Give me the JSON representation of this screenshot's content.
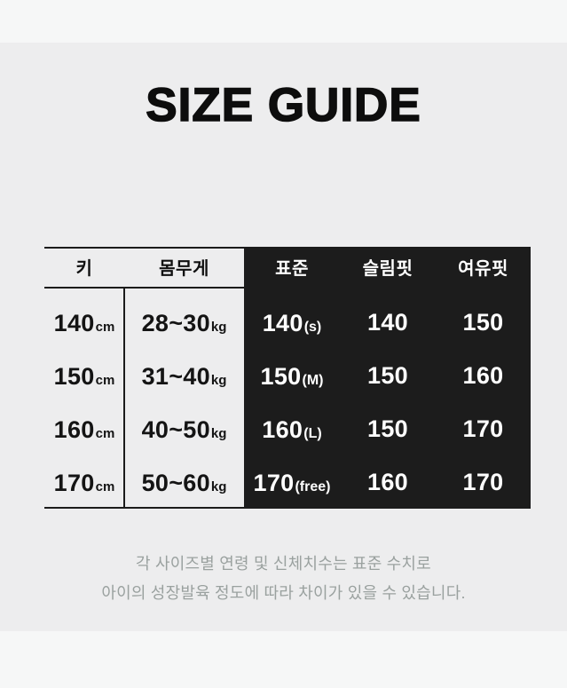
{
  "title": "SIZE GUIDE",
  "table": {
    "columns": {
      "height": "키",
      "weight": "몸무게",
      "standard": "표준",
      "slim": "슬림핏",
      "loose": "여유핏"
    },
    "rows": [
      {
        "height_value": "140",
        "height_unit": "cm",
        "weight_value": "28~30",
        "weight_unit": "kg",
        "standard_value": "140",
        "standard_label": "(s)",
        "slim": "140",
        "loose": "150"
      },
      {
        "height_value": "150",
        "height_unit": "cm",
        "weight_value": "31~40",
        "weight_unit": "kg",
        "standard_value": "150",
        "standard_label": "(M)",
        "slim": "150",
        "loose": "160"
      },
      {
        "height_value": "160",
        "height_unit": "cm",
        "weight_value": "40~50",
        "weight_unit": "kg",
        "standard_value": "160",
        "standard_label": "(L)",
        "slim": "150",
        "loose": "170"
      },
      {
        "height_value": "170",
        "height_unit": "cm",
        "weight_value": "50~60",
        "weight_unit": "kg",
        "standard_value": "170",
        "standard_label": "(free)",
        "slim": "160",
        "loose": "170"
      }
    ]
  },
  "footer": {
    "line1": "각 사이즈별 연령 및 신체치수는 표준 수치로",
    "line2": "아이의 성장발육 정도에 따라 차이가 있을 수 있습니다."
  },
  "colors": {
    "page_bg": "#f6f7f7",
    "band_bg": "#ededee",
    "panel_black": "#1c1c1c",
    "text_dark": "#141414",
    "text_white": "#ffffff",
    "footer_grey": "#9aa19f",
    "rule_line": "#1b1b1b"
  }
}
